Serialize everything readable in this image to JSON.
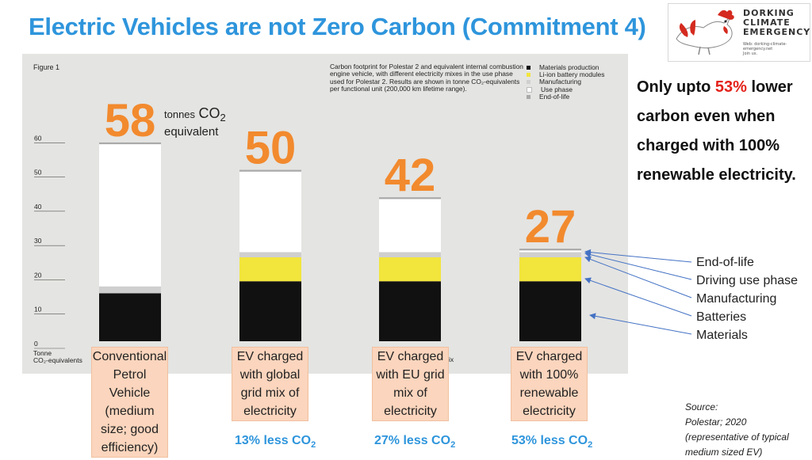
{
  "slide": {
    "title": "Electric Vehicles are not Zero Carbon (Commitment 4)"
  },
  "logo": {
    "line1": "DORKING",
    "line2": "CLIMATE",
    "line3": "EMERGENCY",
    "web": "Web: dorking-climate-emergency.net",
    "join": "Join us."
  },
  "figure": {
    "label": "Figure 1",
    "caption": "Carbon footprint for Polestar 2 and equivalent internal combustion engine vehicle, with different electricity mixes in the use phase used for Polestar 2. Results are shown in tonne CO₂-equivalents per functional unit (200,000 km lifetime range).",
    "y_axis_label_line1": "Tonne",
    "y_axis_label_line2": "CO₂-equivalents",
    "trailing_text": "ix"
  },
  "unit_label": {
    "tonnes": "tonnes",
    "co": "CO",
    "sub": "2",
    "equivalent": "equivalent"
  },
  "chart_data": {
    "type": "bar",
    "stacked": true,
    "categories": [
      "Conventional Petrol Vehicle (medium size; good efficiency)",
      "EV charged with global grid mix of electricity",
      "EV charged with EU grid mix of electricity",
      "EV charged with 100% renewable electricity"
    ],
    "totals": [
      58,
      50,
      42,
      27
    ],
    "series": [
      {
        "name": "Materials production",
        "color": "#111111",
        "values": [
          14,
          17.5,
          17.5,
          17.5
        ]
      },
      {
        "name": "Li-ion battery modules",
        "color": "#f2e53c",
        "values": [
          0,
          7,
          7,
          7
        ]
      },
      {
        "name": "Manufacturing",
        "color": "#cfcfcf",
        "values": [
          2,
          1.5,
          1.5,
          1.5
        ]
      },
      {
        "name": "Use phase",
        "color": "#ffffff",
        "values": [
          41.5,
          23.5,
          15.5,
          0.5
        ]
      },
      {
        "name": "End-of-life",
        "color": "#a9a9a9",
        "values": [
          0.5,
          0.5,
          0.5,
          0.5
        ]
      }
    ],
    "yticks": [
      0,
      10,
      20,
      30,
      40,
      50,
      60
    ],
    "ylim": [
      0,
      70
    ],
    "total_label_color": "#f28a2e"
  },
  "callout": {
    "before": "Only upto ",
    "highlight": "53%",
    "after": " lower carbon even when charged with 100% renewable electricity."
  },
  "component_legend": [
    "End-of-life",
    "Driving use phase",
    "Manufacturing",
    "Batteries",
    "Materials"
  ],
  "vehicle_boxes": [
    "Conventional Petrol Vehicle (medium size; good efficiency)",
    "EV charged with global grid mix of electricity",
    "EV charged with EU grid mix of electricity",
    "EV charged with 100% renewable electricity"
  ],
  "reductions": [
    {
      "text": "13% less CO",
      "sub": "2"
    },
    {
      "text": "27% less CO",
      "sub": "2"
    },
    {
      "text": "53% less CO",
      "sub": "2"
    }
  ],
  "source": {
    "line1": "Source:",
    "line2": "Polestar; 2020",
    "line3": "(representative of typical",
    "line4": "medium sized EV)"
  }
}
